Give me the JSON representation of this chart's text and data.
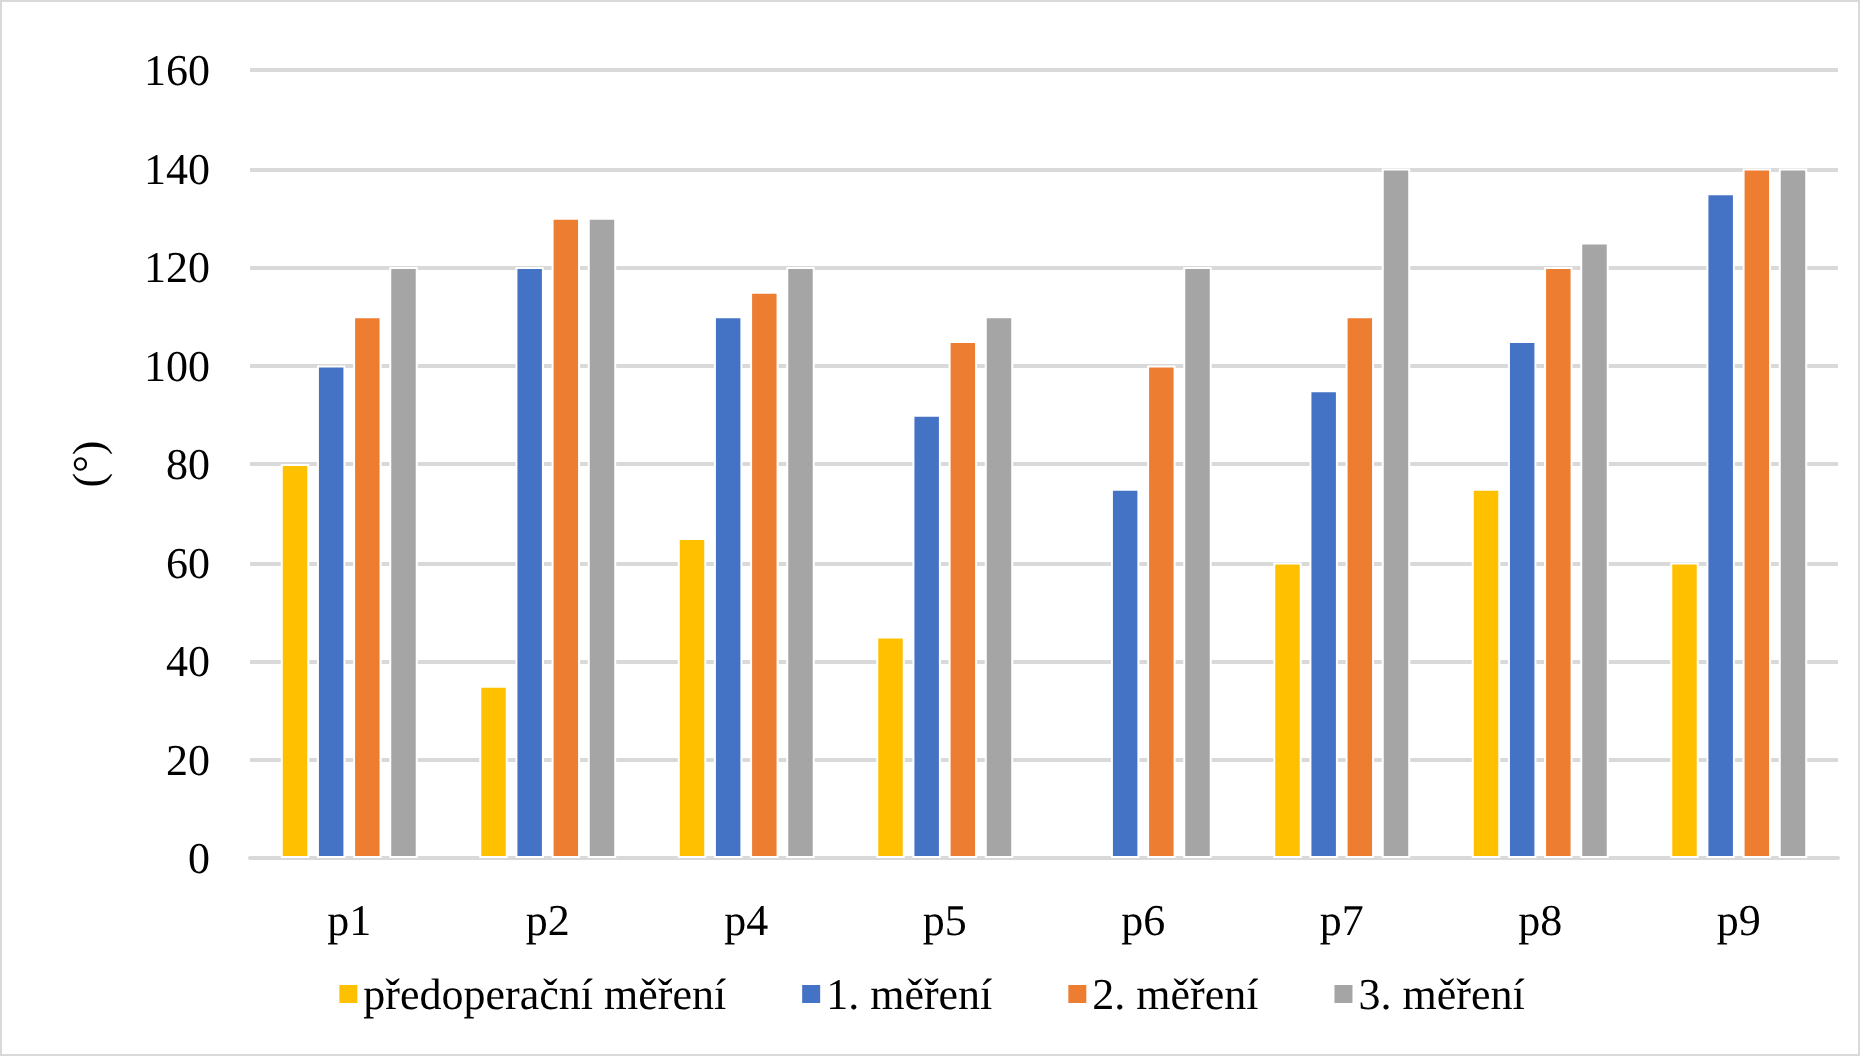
{
  "chart_data": {
    "type": "bar",
    "ylabel": "(°)",
    "categories": [
      "p1",
      "p2",
      "p4",
      "p5",
      "p6",
      "p7",
      "p8",
      "p9"
    ],
    "series": [
      {
        "name": "předoperační měření",
        "color": "#ffc000",
        "values": [
          80,
          35,
          65,
          45,
          null,
          60,
          75,
          60
        ]
      },
      {
        "name": "1. měření",
        "color": "#4472c4",
        "values": [
          100,
          120,
          110,
          90,
          75,
          95,
          105,
          135
        ]
      },
      {
        "name": "2. měření",
        "color": "#ed7d31",
        "values": [
          110,
          130,
          115,
          105,
          100,
          110,
          120,
          140
        ]
      },
      {
        "name": "3. měření",
        "color": "#a5a5a5",
        "values": [
          120,
          130,
          120,
          110,
          120,
          140,
          125,
          140
        ]
      }
    ],
    "ylim": [
      0,
      160
    ],
    "yticks": [
      0,
      20,
      40,
      60,
      80,
      100,
      120,
      140,
      160
    ],
    "grid": "y",
    "legend": "bottom"
  }
}
